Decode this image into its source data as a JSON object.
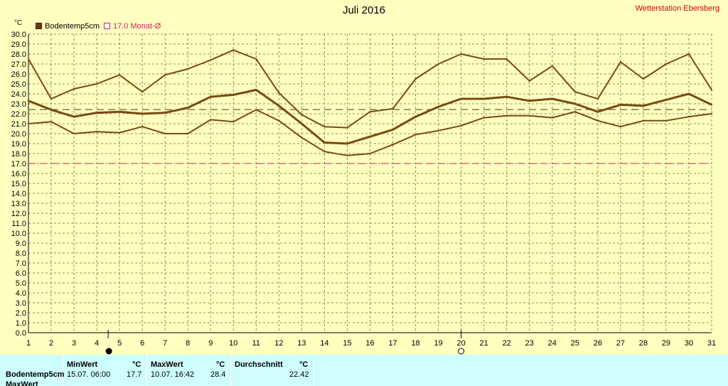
{
  "header": {
    "title": "Juli 2016",
    "station": "Wetterstation Ebersberg",
    "unit": "°C"
  },
  "legend": [
    {
      "label": "Bodentemp5cm",
      "color": "#6e3a10"
    },
    {
      "label": "17.0 Monat-Ø",
      "color": "#cc2266"
    }
  ],
  "colors": {
    "background": "#ffffc0",
    "series": "#7a4a10",
    "reference": "#cc2266",
    "panel": "#cdfdfd"
  },
  "chart_data": {
    "type": "line",
    "title": "Juli 2016",
    "xlabel": "",
    "ylabel": "°C",
    "xlim": [
      1,
      31
    ],
    "ylim": [
      0,
      30
    ],
    "grid": true,
    "x": [
      1,
      2,
      3,
      4,
      5,
      6,
      7,
      8,
      9,
      10,
      11,
      12,
      13,
      14,
      15,
      16,
      17,
      18,
      19,
      20,
      21,
      22,
      23,
      24,
      25,
      26,
      27,
      28,
      29,
      30,
      31
    ],
    "series": [
      {
        "name": "Bodentemp5cm max",
        "values": [
          27.5,
          23.5,
          24.5,
          25.0,
          25.9,
          24.2,
          25.9,
          26.5,
          27.4,
          28.4,
          27.5,
          24.1,
          21.9,
          20.7,
          20.6,
          22.2,
          22.5,
          25.5,
          27.0,
          28.0,
          27.5,
          27.5,
          25.3,
          26.8,
          24.2,
          23.5,
          27.2,
          25.5,
          27.0,
          28.0,
          24.4
        ]
      },
      {
        "name": "Bodentemp5cm",
        "values": [
          23.3,
          22.4,
          21.7,
          22.1,
          22.2,
          22.0,
          22.1,
          22.6,
          23.7,
          23.9,
          24.4,
          22.8,
          21.0,
          19.1,
          19.0,
          19.7,
          20.4,
          21.7,
          22.7,
          23.5,
          23.5,
          23.7,
          23.3,
          23.5,
          23.0,
          22.2,
          22.9,
          22.8,
          23.4,
          24.0,
          22.9
        ]
      },
      {
        "name": "Bodentemp5cm min",
        "values": [
          21.0,
          21.2,
          20.0,
          20.2,
          20.1,
          20.7,
          20.0,
          20.0,
          21.4,
          21.2,
          22.4,
          21.3,
          19.6,
          18.2,
          17.8,
          18.0,
          18.9,
          19.9,
          20.3,
          20.8,
          21.6,
          21.8,
          21.8,
          21.6,
          22.2,
          21.3,
          20.7,
          21.3,
          21.3,
          21.7,
          22.0
        ]
      }
    ],
    "reference_lines": [
      {
        "label": "17.0 Monat-Ø",
        "value": 17.0
      },
      {
        "label": "",
        "value": 22.42
      }
    ],
    "markers": [
      {
        "x": 4.5,
        "symbol": "new-moon"
      },
      {
        "x": 20,
        "symbol": "full-moon"
      }
    ],
    "yticks": [
      "0.0",
      "1.0",
      "2.0",
      "3.0",
      "4.0",
      "5.0",
      "6.0",
      "7.0",
      "8.0",
      "9.0",
      "10.0",
      "11.0",
      "12.0",
      "13.0",
      "14.0",
      "15.0",
      "16.0",
      "17.0",
      "18.0",
      "19.0",
      "20.0",
      "21.0",
      "22.0",
      "23.0",
      "24.0",
      "25.0",
      "26.0",
      "27.0",
      "28.0",
      "29.0",
      "30.0"
    ],
    "xticks": [
      "1",
      "2",
      "3",
      "4",
      "5",
      "6",
      "7",
      "8",
      "9",
      "10",
      "11",
      "12",
      "13",
      "14",
      "15",
      "16",
      "17",
      "18",
      "19",
      "20",
      "21",
      "22",
      "23",
      "24",
      "25",
      "26",
      "27",
      "28",
      "29",
      "30",
      "31"
    ]
  },
  "table": {
    "headers": {
      "min": "MinWert",
      "max": "MaxWert",
      "avg": "Durchschnitt",
      "unit": "°C"
    },
    "rows": [
      {
        "label": "Bodentemp5cm",
        "min_time": "15.07.  06:00",
        "min_value": "17.7",
        "max_time": "10.07.  16:42",
        "max_value": "28.4",
        "avg": "22.42"
      },
      {
        "label": "MaxWert"
      }
    ]
  }
}
